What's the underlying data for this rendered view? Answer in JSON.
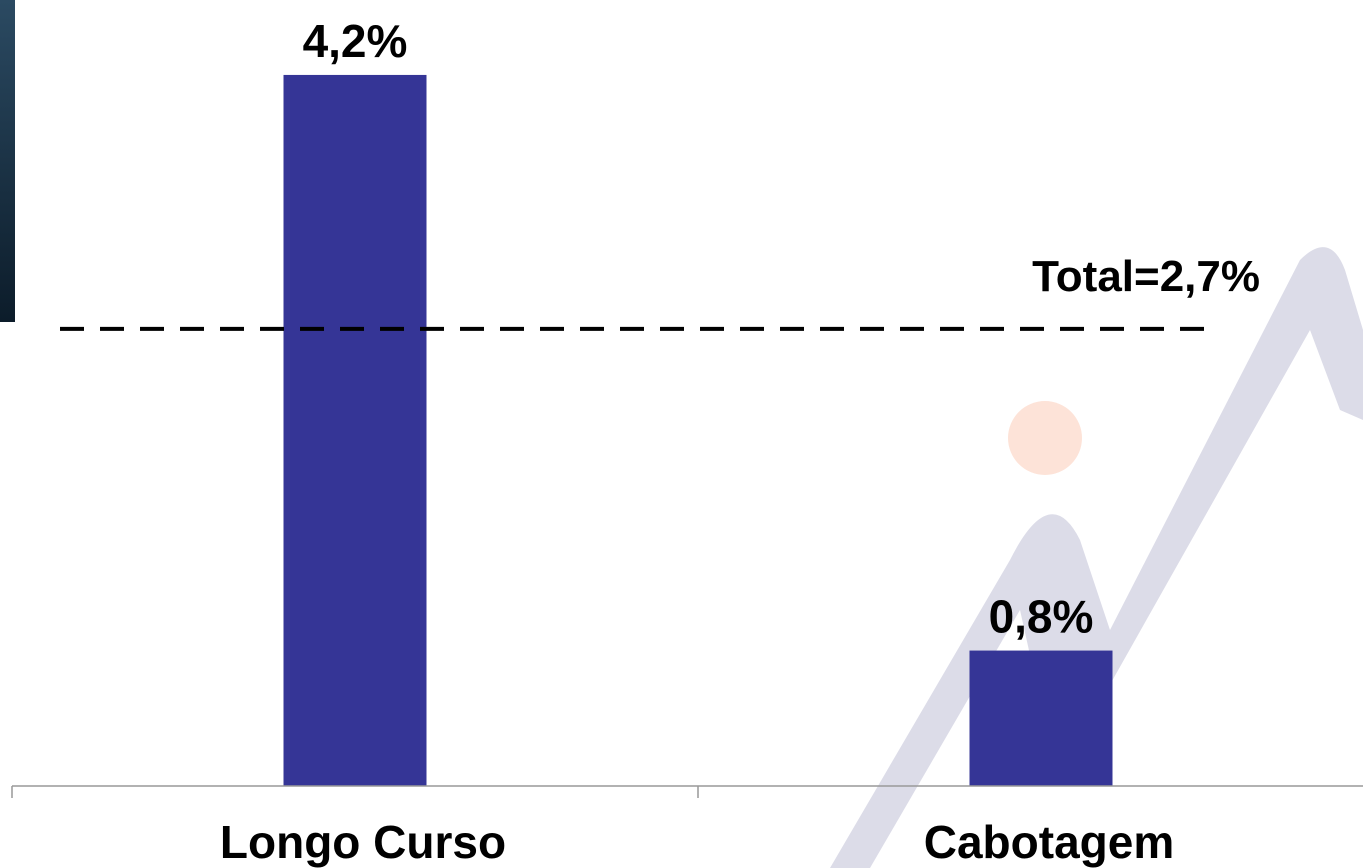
{
  "chart_data": {
    "type": "bar",
    "categories": [
      "Longo Curso",
      "Cabotagem"
    ],
    "values": [
      4.2,
      0.8
    ],
    "value_labels": [
      "4,2%",
      "0,8%"
    ],
    "color": "#353596",
    "ylim": [
      0,
      4.6
    ],
    "reference_line": {
      "value": 2.7,
      "label": "Total=2,7%"
    }
  }
}
